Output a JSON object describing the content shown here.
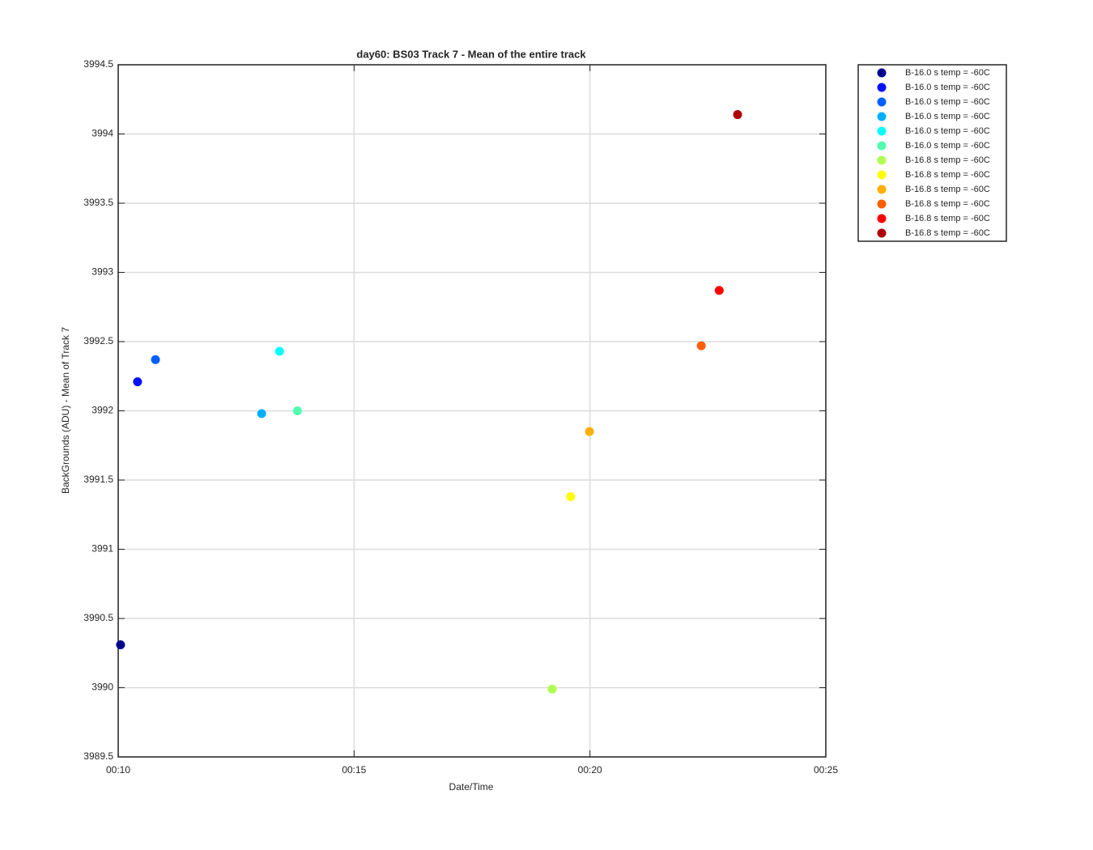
{
  "chart_data": {
    "type": "scatter",
    "title": "day60: BS03  Track 7 - Mean of the entire track",
    "xlabel": "Date/Time",
    "ylabel": "BackGrounds (ADU) - Mean of Track 7",
    "xlim": [
      10,
      25
    ],
    "xticks": [
      {
        "value": 10,
        "label": "00:10"
      },
      {
        "value": 15,
        "label": "00:15"
      },
      {
        "value": 20,
        "label": "00:20"
      },
      {
        "value": 25,
        "label": "00:25"
      }
    ],
    "ylim": [
      3989.5,
      3994.5
    ],
    "yticks": [
      3989.5,
      3990,
      3990.5,
      3991,
      3991.5,
      3992,
      3992.5,
      3993,
      3993.5,
      3994,
      3994.5
    ],
    "grid": true,
    "legend": "outside-right",
    "series": [
      {
        "name": "B-16.0 s temp = -60C",
        "color": "#00008f",
        "x": [
          10.05
        ],
        "values": [
          3990.31
        ]
      },
      {
        "name": "B-16.0 s temp = -60C",
        "color": "#0010ff",
        "x": [
          10.41
        ],
        "values": [
          3992.21
        ]
      },
      {
        "name": "B-16.0 s temp = -60C",
        "color": "#0060ff",
        "x": [
          10.79
        ],
        "values": [
          3992.37
        ]
      },
      {
        "name": "B-16.0 s temp = -60C",
        "color": "#00afff",
        "x": [
          13.04
        ],
        "values": [
          3991.98
        ]
      },
      {
        "name": "B-16.0 s temp = -60C",
        "color": "#00ffff",
        "x": [
          13.42
        ],
        "values": [
          3992.43
        ]
      },
      {
        "name": "B-16.0 s temp = -60C",
        "color": "#50ffaf",
        "x": [
          13.8
        ],
        "values": [
          3992.0
        ]
      },
      {
        "name": "B-16.8 s temp = -60C",
        "color": "#afff50",
        "x": [
          19.2
        ],
        "values": [
          3989.99
        ]
      },
      {
        "name": "B-16.8 s temp = -60C",
        "color": "#ffff00",
        "x": [
          19.59
        ],
        "values": [
          3991.38
        ]
      },
      {
        "name": "B-16.8 s temp = -60C",
        "color": "#ffaf00",
        "x": [
          19.99
        ],
        "values": [
          3991.85
        ]
      },
      {
        "name": "B-16.8 s temp = -60C",
        "color": "#ff5f00",
        "x": [
          22.36
        ],
        "values": [
          3992.47
        ]
      },
      {
        "name": "B-16.8 s temp = -60C",
        "color": "#ff0000",
        "x": [
          22.74
        ],
        "values": [
          3992.87
        ]
      },
      {
        "name": "B-16.8 s temp = -60C",
        "color": "#af0000",
        "x": [
          23.13
        ],
        "values": [
          3994.14
        ]
      }
    ]
  }
}
